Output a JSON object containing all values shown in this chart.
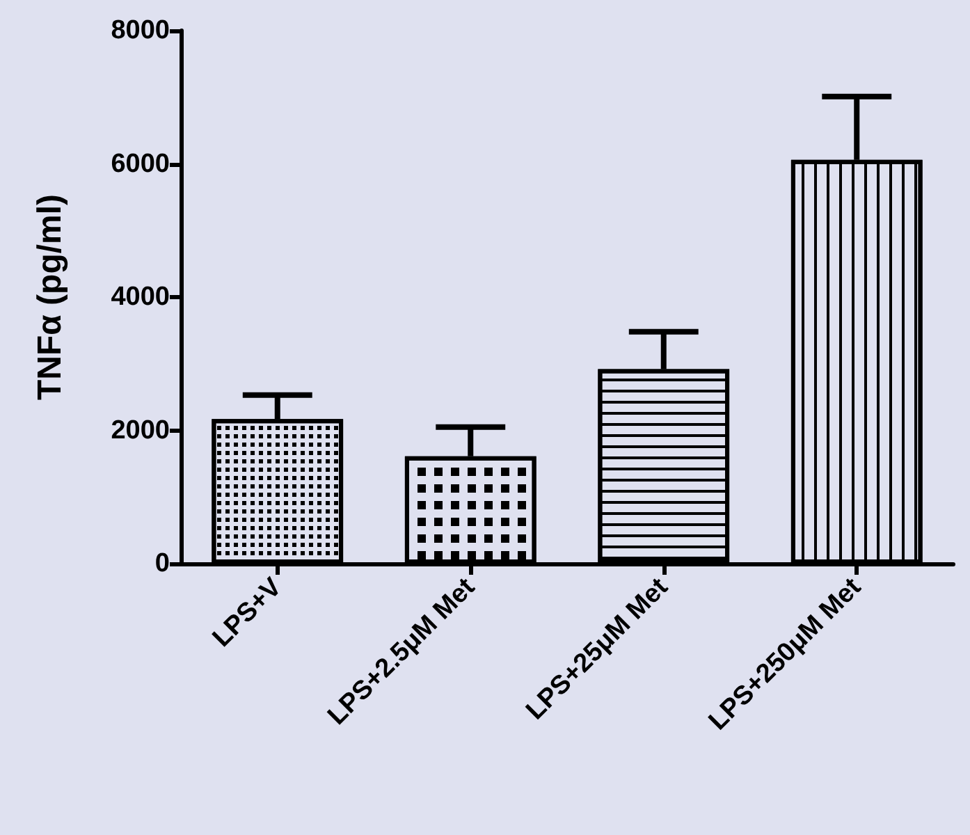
{
  "chart_data": {
    "type": "bar",
    "ylabel": "TNFα (pg/ml)",
    "categories": [
      "LPS+V",
      "LPS+2.5μM Met",
      "LPS+25μM Met",
      "LPS+250μM Met"
    ],
    "values": [
      2170,
      1610,
      2920,
      6060
    ],
    "errors": [
      [
        2170,
        2530
      ],
      [
        1610,
        2050
      ],
      [
        2920,
        3480
      ],
      [
        6060,
        7010
      ]
    ],
    "colors": [
      "#000000",
      "#000000",
      "#000000",
      "#000000"
    ],
    "ylim": [
      0,
      8000
    ],
    "yticks": [
      0,
      2000,
      4000,
      6000,
      8000
    ],
    "grid": false
  }
}
